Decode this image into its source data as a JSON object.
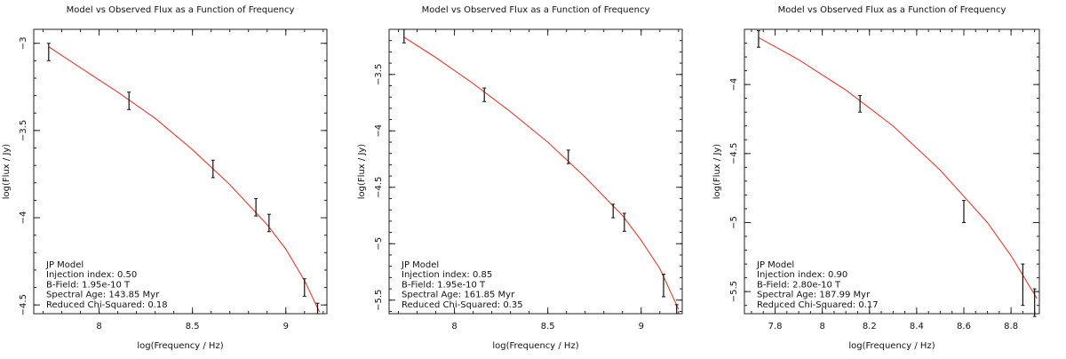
{
  "chart_data": [
    {
      "type": "line",
      "title": "Model vs Observed Flux as a Function of Frequency",
      "xlabel": "log(Frequency / Hz)",
      "ylabel": "log(Flux / Jy)",
      "xlim": [
        7.65,
        9.22
      ],
      "ylim": [
        -4.55,
        -2.92
      ],
      "xticks": [
        8,
        8.5,
        9
      ],
      "yticks": [
        -3,
        -3.5,
        -4,
        -4.5
      ],
      "yminor_step": 0.1,
      "xminor_step": 0.1,
      "grid": false,
      "model_color": "#e8392f",
      "series": [
        {
          "kind": "observed",
          "x": [
            7.73,
            8.16,
            8.61,
            8.84,
            8.91,
            9.1,
            9.17
          ],
          "y": [
            -3.05,
            -3.33,
            -3.72,
            -3.94,
            -4.03,
            -4.4,
            -4.52
          ],
          "yerr": [
            0.05,
            0.05,
            0.05,
            0.05,
            0.05,
            0.05,
            0.03
          ]
        },
        {
          "kind": "model",
          "x": [
            7.73,
            7.9,
            8.1,
            8.3,
            8.5,
            8.7,
            8.9,
            9.0,
            9.1,
            9.18
          ],
          "y": [
            -3.02,
            -3.14,
            -3.28,
            -3.43,
            -3.61,
            -3.81,
            -4.04,
            -4.18,
            -4.36,
            -4.54
          ]
        }
      ],
      "annotation": [
        "JP Model",
        "Injection index: 0.50",
        "B-Field: 1.95e-10 T",
        "Spectral Age: 143.85 Myr",
        "Reduced Chi-Squared: 0.18"
      ]
    },
    {
      "type": "line",
      "title": "Model vs Observed Flux as a Function of Frequency",
      "xlabel": "log(Frequency / Hz)",
      "ylabel": "log(Flux / Jy)",
      "xlim": [
        7.65,
        9.22
      ],
      "ylim": [
        -5.62,
        -3.1
      ],
      "xticks": [
        8,
        8.5,
        9
      ],
      "yticks": [
        -3.5,
        -4,
        -4.5,
        -5,
        -5.5
      ],
      "yminor_step": 0.1,
      "xminor_step": 0.1,
      "grid": false,
      "model_color": "#e8392f",
      "series": [
        {
          "kind": "observed",
          "x": [
            7.73,
            8.16,
            8.61,
            8.85,
            8.91,
            9.12,
            9.19
          ],
          "y": [
            -3.16,
            -3.68,
            -4.23,
            -4.71,
            -4.81,
            -5.37,
            -5.58
          ],
          "yerr": [
            0.06,
            0.06,
            0.06,
            0.06,
            0.08,
            0.1,
            0.04
          ]
        },
        {
          "kind": "model",
          "x": [
            7.73,
            7.9,
            8.1,
            8.3,
            8.5,
            8.7,
            8.9,
            9.0,
            9.1,
            9.2
          ],
          "y": [
            -3.17,
            -3.35,
            -3.58,
            -3.83,
            -4.1,
            -4.41,
            -4.75,
            -4.97,
            -5.22,
            -5.58
          ]
        }
      ],
      "annotation": [
        "JP Model",
        "Injection index: 0.85",
        "B-Field: 1.95e-10 T",
        "Spectral Age: 161.85 Myr",
        "Reduced Chi-Squared: 0.35"
      ]
    },
    {
      "type": "line",
      "title": "Model vs Observed Flux as a Function of Frequency",
      "xlabel": "log(Frequency / Hz)",
      "ylabel": "log(Flux / Jy)",
      "xlim": [
        7.67,
        8.92
      ],
      "ylim": [
        -5.66,
        -3.6
      ],
      "xticks": [
        7.8,
        8,
        8.2,
        8.4,
        8.6,
        8.8
      ],
      "yticks": [
        -4,
        -4.5,
        -5,
        -5.5
      ],
      "yminor_step": 0.1,
      "xminor_step": 0.05,
      "grid": false,
      "model_color": "#e8392f",
      "series": [
        {
          "kind": "observed",
          "x": [
            7.73,
            8.16,
            8.6,
            8.85,
            8.9
          ],
          "y": [
            -3.67,
            -4.14,
            -4.92,
            -5.45,
            -5.58
          ],
          "yerr": [
            0.06,
            0.06,
            0.08,
            0.15,
            0.1
          ]
        },
        {
          "kind": "model",
          "x": [
            7.73,
            7.9,
            8.1,
            8.3,
            8.5,
            8.7,
            8.8,
            8.91
          ],
          "y": [
            -3.66,
            -3.82,
            -4.04,
            -4.3,
            -4.62,
            -5.0,
            -5.24,
            -5.55
          ]
        }
      ],
      "annotation": [
        "JP Model",
        "Injection index: 0.90",
        "B-Field: 2.80e-10 T",
        "Spectral Age: 187.99 Myr",
        "Reduced Chi-Squared: 0.17"
      ]
    }
  ]
}
